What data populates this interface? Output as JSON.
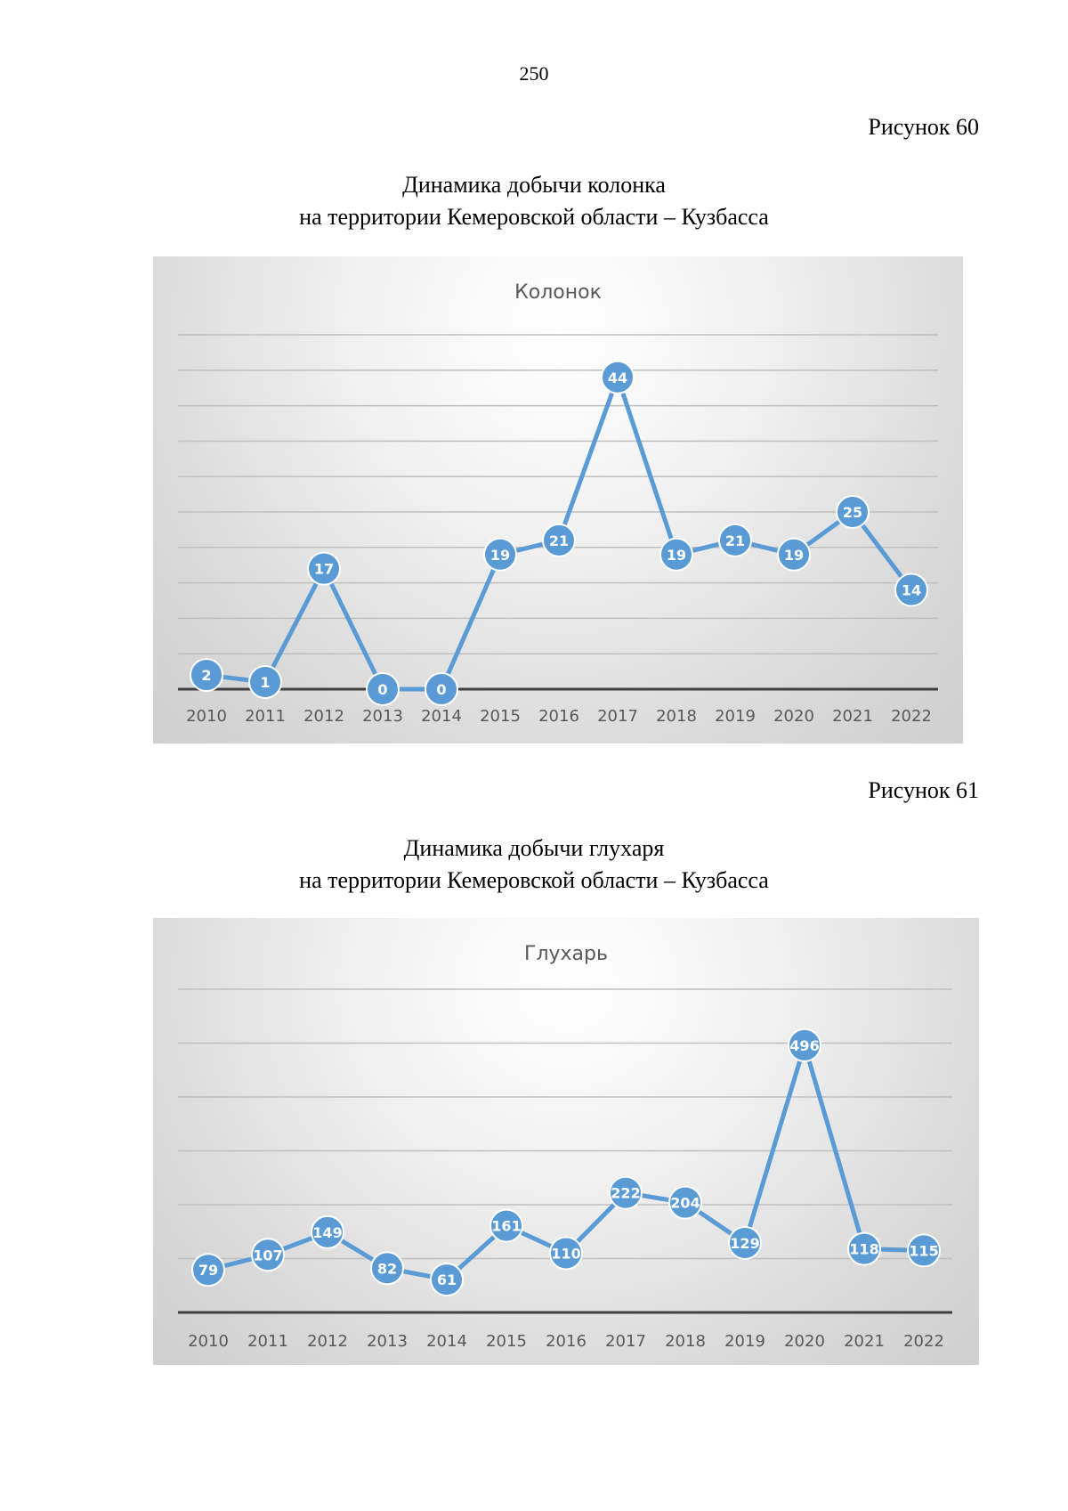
{
  "page_number": "250",
  "figures": [
    {
      "label": "Рисунок 60",
      "title_line1": "Динамика добычи колонка",
      "title_line2": "на территории Кемеровской области – Кузбасса"
    },
    {
      "label": "Рисунок 61",
      "title_line1": "Динамика добычи глухаря",
      "title_line2": "на территории Кемеровской области – Кузбасса"
    }
  ],
  "chart_data": [
    {
      "type": "line",
      "title": "Колонок",
      "categories": [
        "2010",
        "2011",
        "2012",
        "2013",
        "2014",
        "2015",
        "2016",
        "2017",
        "2018",
        "2019",
        "2020",
        "2021",
        "2022"
      ],
      "series": [
        {
          "values": [
            2,
            1,
            17,
            0,
            0,
            19,
            21,
            44,
            19,
            21,
            19,
            25,
            14
          ]
        }
      ],
      "ylim": [
        0,
        50
      ],
      "grid": true,
      "legend": "none",
      "colors": {
        "line": "#5b9bd5",
        "gridline": "#bfbfbf",
        "axis": "#404040"
      }
    },
    {
      "type": "line",
      "title": "Глухарь",
      "categories": [
        "2010",
        "2011",
        "2012",
        "2013",
        "2014",
        "2015",
        "2016",
        "2017",
        "2018",
        "2019",
        "2020",
        "2021",
        "2022"
      ],
      "series": [
        {
          "values": [
            79,
            107,
            149,
            82,
            61,
            161,
            110,
            222,
            204,
            129,
            496,
            118,
            115
          ]
        }
      ],
      "ylim": [
        0,
        600
      ],
      "grid": true,
      "legend": "none",
      "colors": {
        "line": "#5b9bd5",
        "gridline": "#bfbfbf",
        "axis": "#404040"
      }
    }
  ]
}
